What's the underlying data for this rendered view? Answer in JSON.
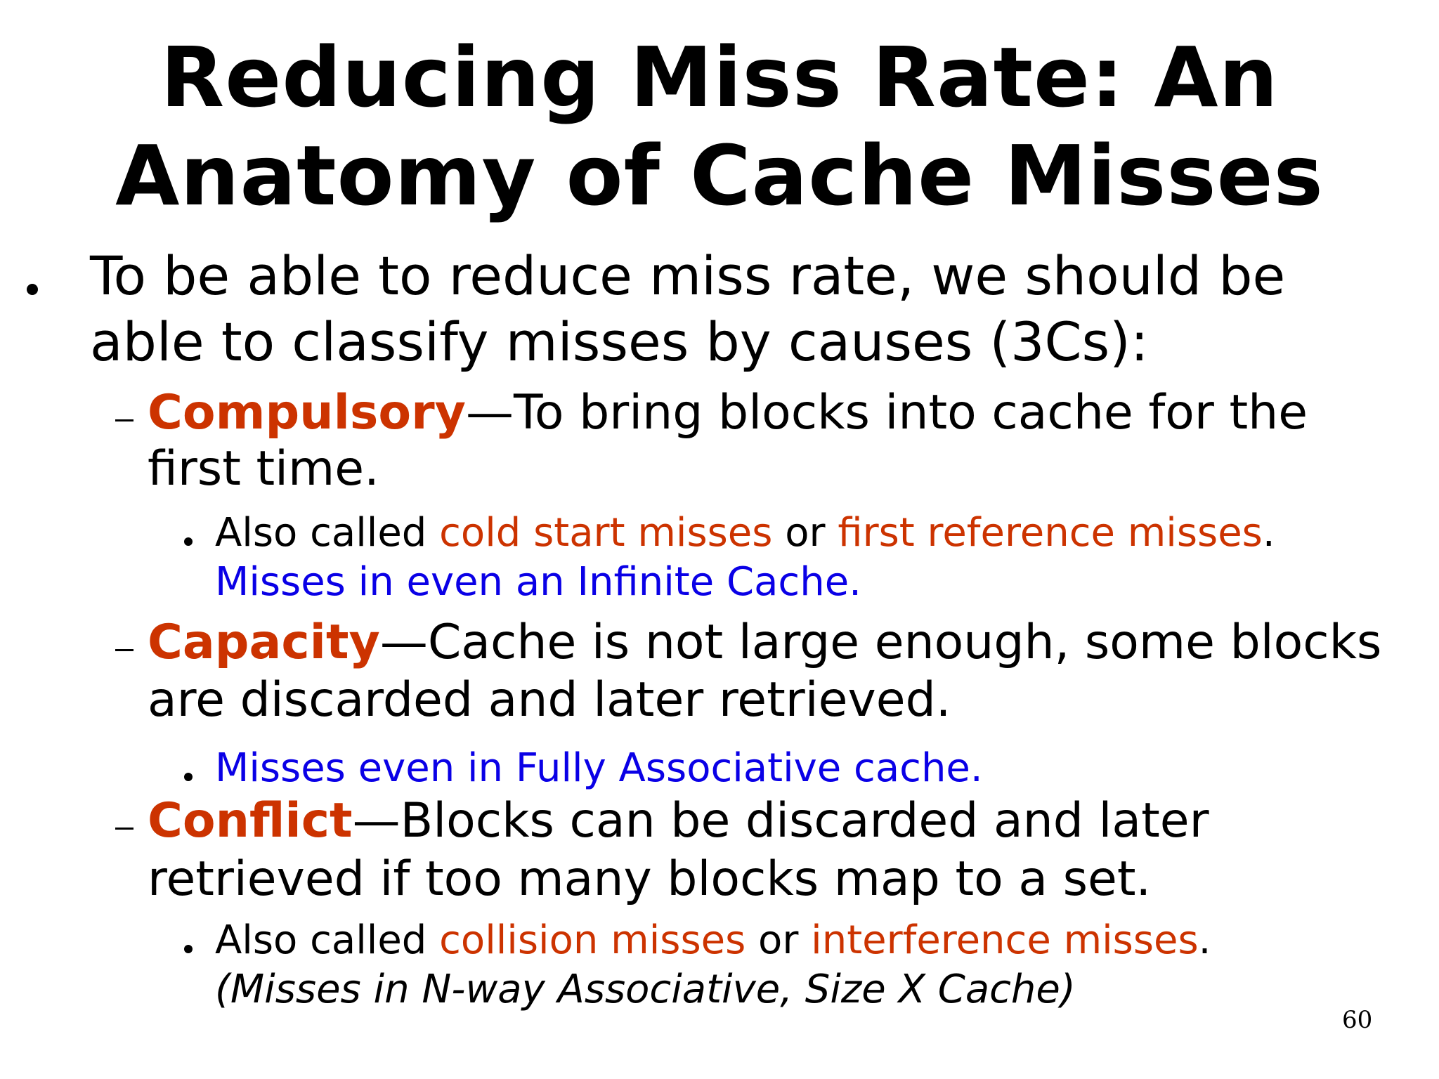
{
  "title": {
    "line1": "Reducing Miss Rate: An",
    "line2": "Anatomy of Cache Misses"
  },
  "intro": {
    "line1": "To be able to reduce miss rate, we should be",
    "line2": "able to classify misses by causes (3Cs):"
  },
  "compulsory": {
    "term": "Compulsory",
    "text1": "—To bring blocks into cache for the",
    "text2": "first time.",
    "note_prefix": "Also called ",
    "alias1": "cold start misses",
    "or": " or ",
    "alias2": "first reference misses",
    "period": ".",
    "note2": "Misses in even an Infinite Cache."
  },
  "capacity": {
    "term": "Capacity",
    "text1": "—Cache is not large enough, some blocks",
    "text2": "are discarded and later retrieved.",
    "note": "Misses even in Fully Associative cache."
  },
  "conflict": {
    "term": "Conflict",
    "text1": "—Blocks can be discarded and later",
    "text2": "retrieved if too many blocks map to a set.",
    "note_prefix": "Also called ",
    "alias1": "collision misses",
    "or": " or ",
    "alias2": "interference misses",
    "period": ".",
    "note2": "(Misses in N-way Associative, Size X Cache)"
  },
  "page_number": "60",
  "colors": {
    "term": "#cc3300",
    "alias": "#cc3300",
    "highlight": "#0a00e6",
    "text": "#000000"
  }
}
